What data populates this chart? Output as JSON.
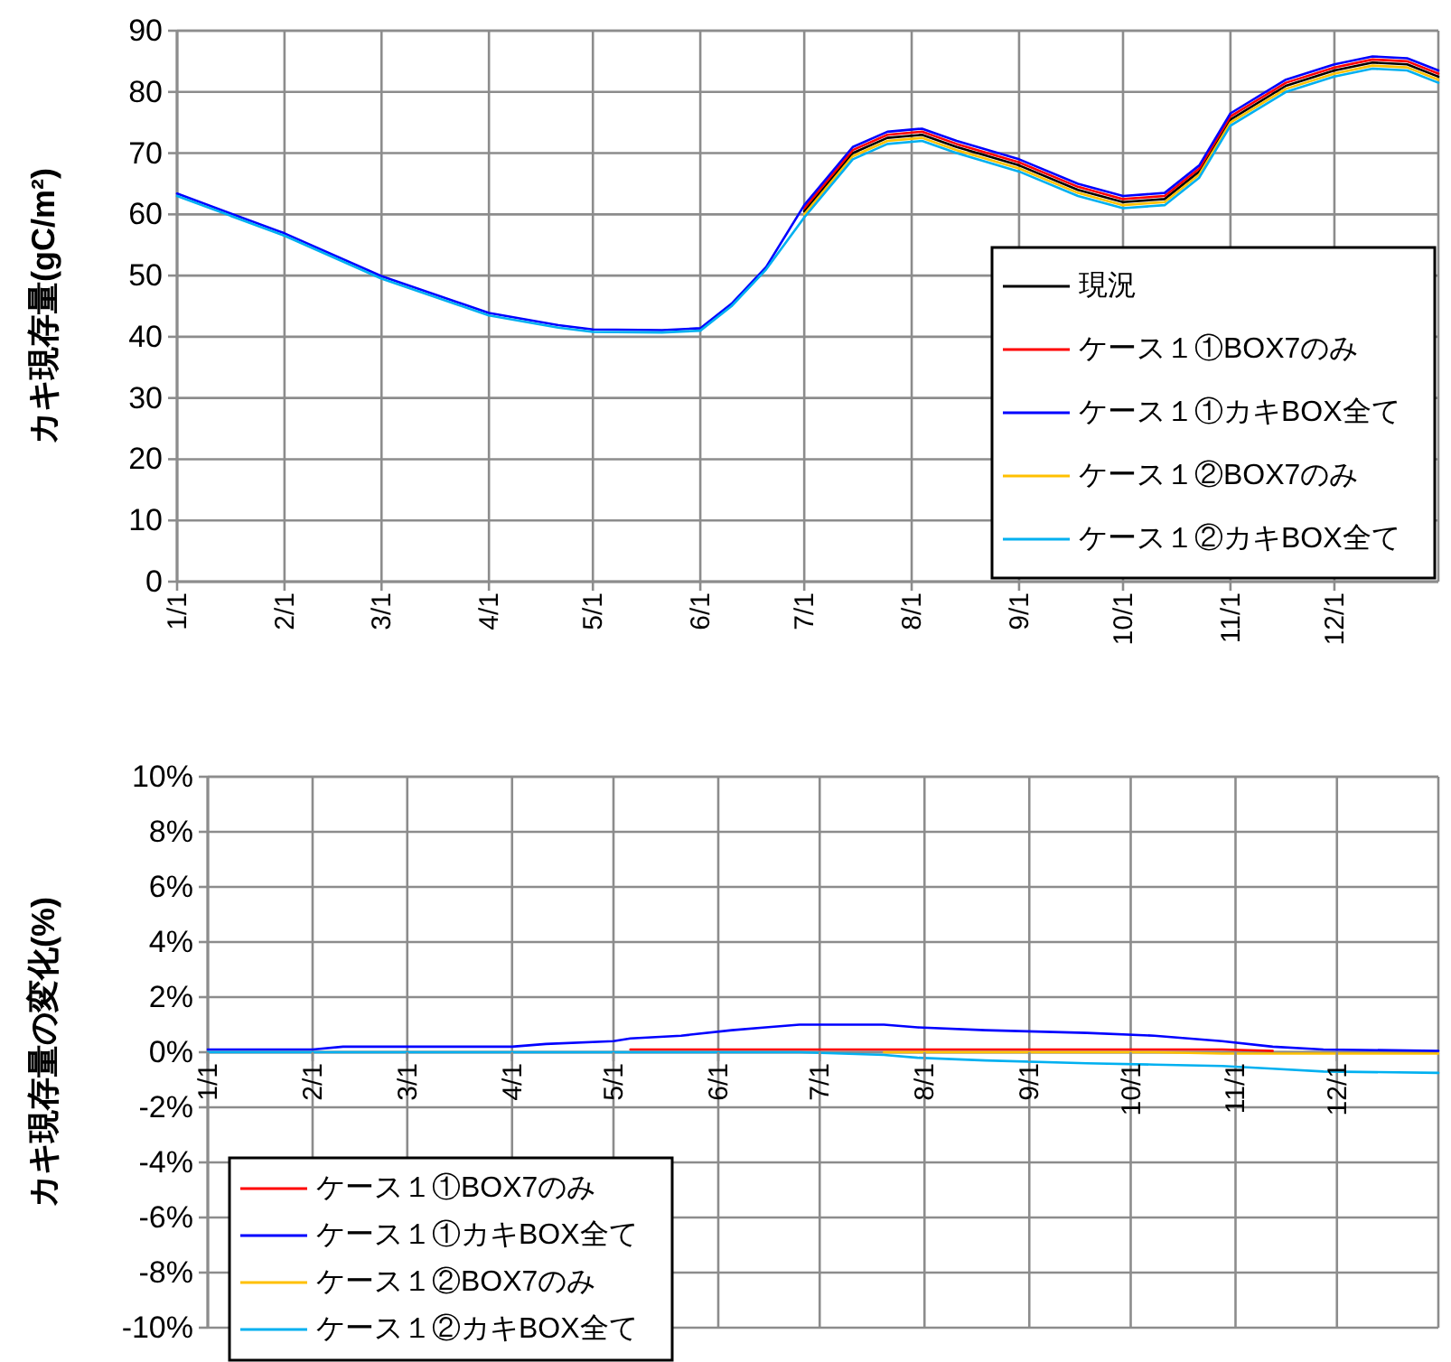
{
  "chart_data": [
    {
      "type": "line",
      "ylabel": "カキ現存量(gC/m²)",
      "xlim": [
        "--01-01",
        "--12-31"
      ],
      "xticks": [
        {
          "value": "--01-01",
          "label": "1/1"
        },
        {
          "value": "--02-01",
          "label": "2/1"
        },
        {
          "value": "--03-01",
          "label": "3/1"
        },
        {
          "value": "--04-01",
          "label": "4/1"
        },
        {
          "value": "--05-01",
          "label": "5/1"
        },
        {
          "value": "--06-01",
          "label": "6/1"
        },
        {
          "value": "--07-01",
          "label": "7/1"
        },
        {
          "value": "--08-01",
          "label": "8/1"
        },
        {
          "value": "--09-01",
          "label": "9/1"
        },
        {
          "value": "--10-01",
          "label": "10/1"
        },
        {
          "value": "--11-01",
          "label": "11/1"
        },
        {
          "value": "--12-01",
          "label": "12/1"
        }
      ],
      "ylim": [
        0,
        90
      ],
      "yticks": [
        0,
        10,
        20,
        30,
        40,
        50,
        60,
        70,
        80,
        90
      ],
      "grid": true,
      "legend": "bottom right",
      "line_style": "solid",
      "marker": "none",
      "x": [
        "--01-01",
        "--02-01",
        "--03-01",
        "--04-01",
        "--04-21",
        "--05-01",
        "--05-21",
        "--06-01",
        "--06-10",
        "--06-20",
        "--07-01",
        "--07-15",
        "--07-25",
        "--08-04",
        "--08-14",
        "--09-01",
        "--09-18",
        "--10-01",
        "--10-13",
        "--10-23",
        "--11-01",
        "--11-17",
        "--12-01",
        "--12-12",
        "--12-22",
        "--12-31"
      ],
      "series": [
        {
          "name": "現況",
          "color": "#000000",
          "values": [
            null,
            null,
            null,
            null,
            null,
            null,
            null,
            null,
            null,
            null,
            60.5,
            70,
            72.5,
            73,
            71,
            68,
            64,
            62,
            62.5,
            67,
            75.5,
            81,
            83.5,
            84.8,
            84.5,
            82.5
          ]
        },
        {
          "name": "ケース１①BOX7のみ",
          "color": "#ff0000",
          "values": [
            null,
            null,
            null,
            null,
            null,
            null,
            null,
            null,
            null,
            null,
            61,
            70.5,
            73,
            73.5,
            71.5,
            68.5,
            64.5,
            62.5,
            63,
            67.5,
            76,
            81.5,
            84,
            85.3,
            85,
            83
          ]
        },
        {
          "name": "ケース１①カキBOX全て",
          "color": "#0000ff",
          "values": [
            63.4,
            56.9,
            49.9,
            43.9,
            41.9,
            41.2,
            41.1,
            41.4,
            45.4,
            51.4,
            61.5,
            71,
            73.5,
            74,
            72,
            69,
            65,
            63,
            63.5,
            68,
            76.5,
            82,
            84.5,
            85.8,
            85.5,
            83.5
          ]
        },
        {
          "name": "ケース１②BOX7のみ",
          "color": "#ffc000",
          "values": [
            null,
            null,
            null,
            null,
            null,
            null,
            null,
            null,
            null,
            null,
            60,
            69.5,
            72,
            72.5,
            70.5,
            67.5,
            63.5,
            61.5,
            62,
            66.5,
            75,
            80.5,
            83,
            84.3,
            84,
            82
          ]
        },
        {
          "name": "ケース１②カキBOX全て",
          "color": "#00b0f0",
          "values": [
            63,
            56.5,
            49.5,
            43.5,
            41.5,
            40.8,
            40.7,
            41,
            45,
            51,
            59.5,
            69,
            71.5,
            72,
            70,
            67,
            63,
            61,
            61.5,
            66,
            74.5,
            80,
            82.5,
            83.8,
            83.5,
            81.5
          ]
        }
      ]
    },
    {
      "type": "line",
      "ylabel": "カキ現存量の変化(%)",
      "xlim": [
        "--01-01",
        "--12-31"
      ],
      "xticks": [
        {
          "value": "--01-01",
          "label": "1/1"
        },
        {
          "value": "--02-01",
          "label": "2/1"
        },
        {
          "value": "--03-01",
          "label": "3/1"
        },
        {
          "value": "--04-01",
          "label": "4/1"
        },
        {
          "value": "--05-01",
          "label": "5/1"
        },
        {
          "value": "--06-01",
          "label": "6/1"
        },
        {
          "value": "--07-01",
          "label": "7/1"
        },
        {
          "value": "--08-01",
          "label": "8/1"
        },
        {
          "value": "--09-01",
          "label": "9/1"
        },
        {
          "value": "--10-01",
          "label": "10/1"
        },
        {
          "value": "--11-01",
          "label": "11/1"
        },
        {
          "value": "--12-01",
          "label": "12/1"
        }
      ],
      "ylim": [
        -10,
        10
      ],
      "yticks": [
        {
          "value": -10,
          "label": "-10%"
        },
        {
          "value": -8,
          "label": "-8%"
        },
        {
          "value": -6,
          "label": "-6%"
        },
        {
          "value": -4,
          "label": "-4%"
        },
        {
          "value": -2,
          "label": "-2%"
        },
        {
          "value": 0,
          "label": "0%"
        },
        {
          "value": 2,
          "label": "2%"
        },
        {
          "value": 4,
          "label": "4%"
        },
        {
          "value": 6,
          "label": "6%"
        },
        {
          "value": 8,
          "label": "8%"
        },
        {
          "value": 10,
          "label": "10%"
        }
      ],
      "grid": true,
      "legend": "bottom left",
      "line_style": "solid",
      "marker": "none",
      "x": [
        "--01-01",
        "--02-01",
        "--02-10",
        "--04-01",
        "--04-11",
        "--05-01",
        "--05-06",
        "--05-21",
        "--06-05",
        "--06-15",
        "--06-25",
        "--07-20",
        "--07-30",
        "--08-19",
        "--09-18",
        "--10-08",
        "--10-28",
        "--11-12",
        "--11-27",
        "--12-31"
      ],
      "series": [
        {
          "name": "ケース１①BOX7のみ",
          "color": "#ff0000",
          "values": [
            null,
            null,
            null,
            null,
            null,
            null,
            0.1,
            0.1,
            0.1,
            0.1,
            0.1,
            0.1,
            0.1,
            0.1,
            0.1,
            0.1,
            0.1,
            0.05,
            null,
            null
          ]
        },
        {
          "name": "ケース１①カキBOX全て",
          "color": "#0000ff",
          "values": [
            0.1,
            0.1,
            0.2,
            0.2,
            0.3,
            0.4,
            0.5,
            0.6,
            0.8,
            0.9,
            1,
            1,
            0.9,
            0.8,
            0.7,
            0.6,
            0.4,
            0.2,
            0.1,
            0.05
          ]
        },
        {
          "name": "ケース１②BOX7のみ",
          "color": "#ffc000",
          "values": [
            null,
            null,
            null,
            null,
            null,
            null,
            null,
            null,
            null,
            null,
            null,
            0,
            0,
            0,
            0,
            0,
            -0.05,
            -0.05,
            -0.05,
            -0.05
          ]
        },
        {
          "name": "ケース１②カキBOX全て",
          "color": "#00b0f0",
          "values": [
            0,
            0,
            0,
            0,
            0,
            0,
            0,
            0,
            0,
            0,
            0,
            -0.1,
            -0.2,
            -0.3,
            -0.4,
            -0.45,
            -0.5,
            -0.6,
            -0.7,
            -0.75
          ]
        }
      ]
    }
  ]
}
